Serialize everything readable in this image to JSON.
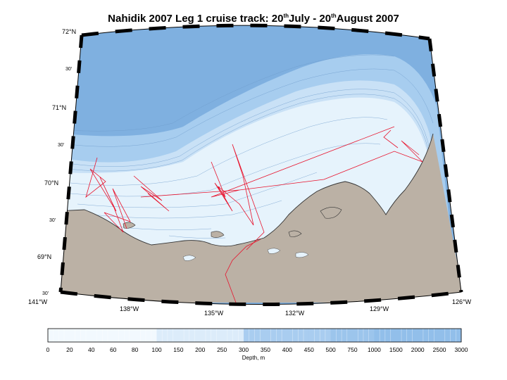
{
  "title": {
    "prefix": "Nahidik 2007 Leg 1 cruise track: 20",
    "sup1": "th",
    "mid": "July - 20",
    "sup2": "th",
    "suffix": "August 2007"
  },
  "map": {
    "lat_labels": [
      "72°N",
      "70°N",
      "71°N",
      "69°N"
    ],
    "min_labels": [
      "30'",
      "30'",
      "30'",
      "30'"
    ],
    "lon_labels": [
      "141°W",
      "138°W",
      "135°W",
      "132°W",
      "129°W",
      "126°W"
    ],
    "colors": {
      "land": "#bbb1a5",
      "shallow": "#e6f3fc",
      "mid": "#c9e1f6",
      "deep": "#8cb9e6",
      "deepest": "#7fb0e0",
      "track": "#e8132d",
      "coast": "#333333"
    }
  },
  "colorbar": {
    "labels": [
      "0",
      "20",
      "40",
      "60",
      "80",
      "100",
      "150",
      "200",
      "250",
      "300",
      "350",
      "400",
      "450",
      "500",
      "750",
      "1000",
      "1500",
      "2000",
      "2500",
      "3000"
    ],
    "colors": [
      "#f2f9fe",
      "#f2f9fe",
      "#f2f9fe",
      "#f2f9fe",
      "#f2f9fe",
      "#dcecfa",
      "#dcecfa",
      "#dcecfa",
      "#dcecfa",
      "#a9cdf0",
      "#a9cdf0",
      "#a9cdf0",
      "#a9cdf0",
      "#9cc5ec",
      "#9cc5ec",
      "#92bfea",
      "#92bfea",
      "#92bfea",
      "#92bfea"
    ],
    "title": "Depth, m"
  }
}
